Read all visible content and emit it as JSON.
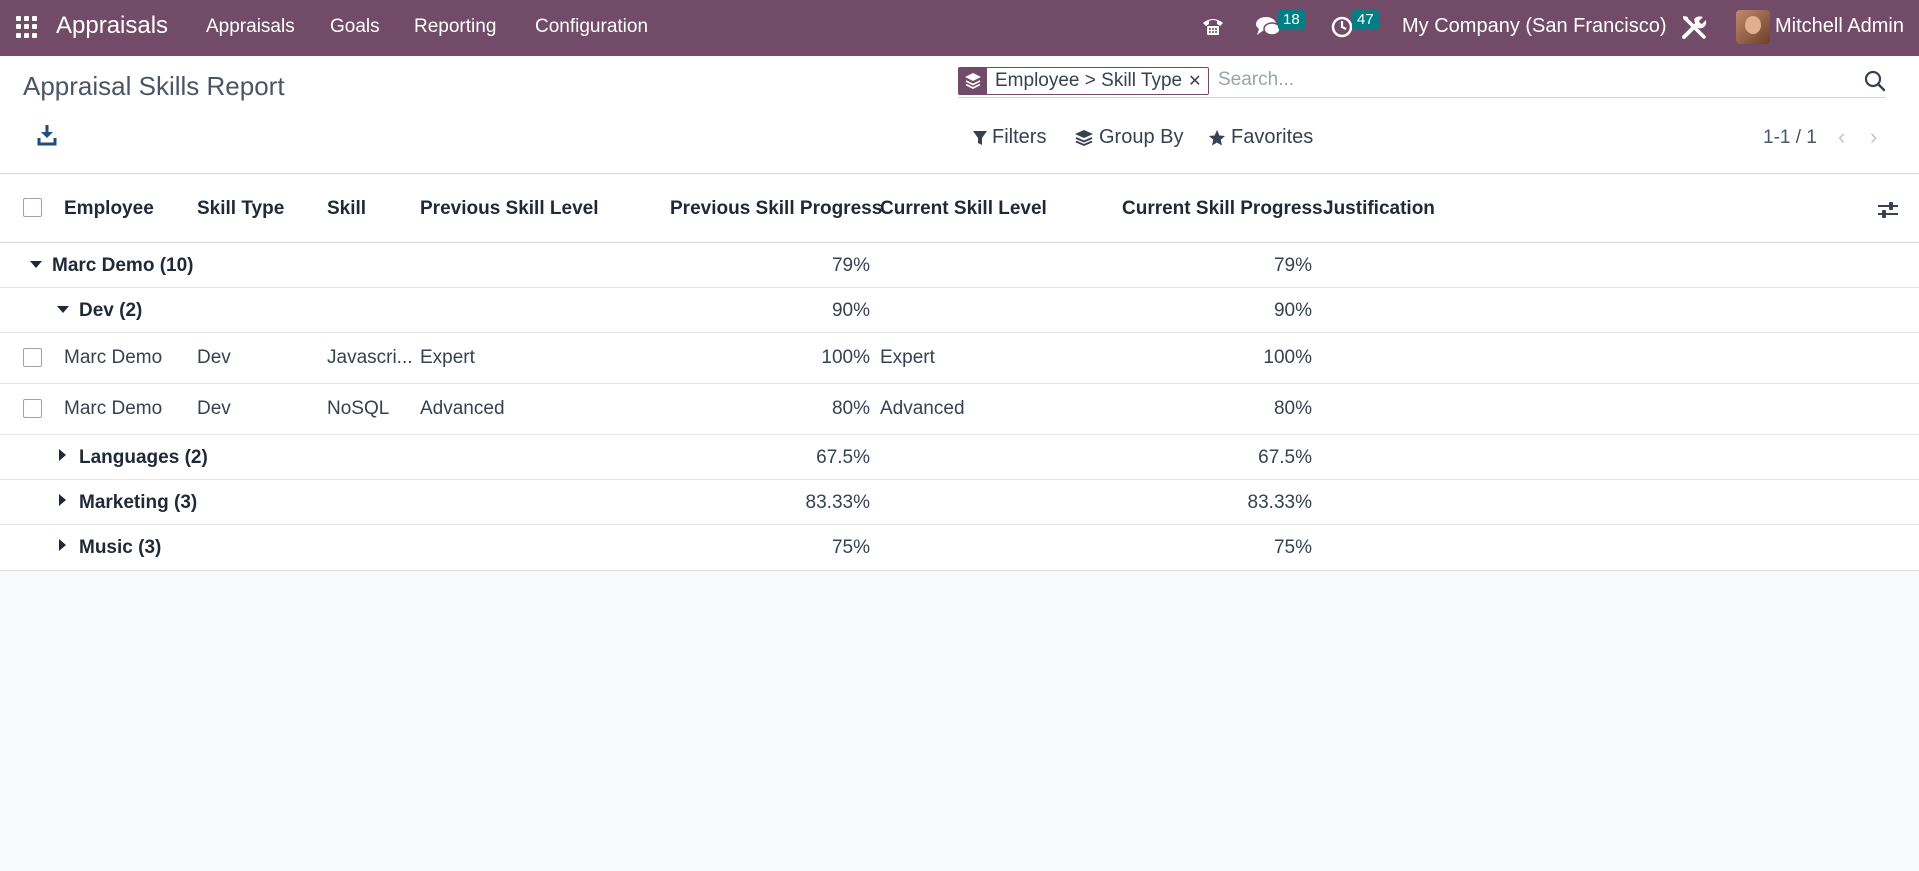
{
  "navbar": {
    "brand": "Appraisals",
    "menu": [
      "Appraisals",
      "Goals",
      "Reporting",
      "Configuration"
    ],
    "messages_count": "18",
    "activities_count": "47",
    "company": "My Company (San Francisco)",
    "user": "Mitchell Admin"
  },
  "control_panel": {
    "title": "Appraisal Skills Report",
    "facet": "Employee > Skill Type",
    "search_placeholder": "Search...",
    "filters": "Filters",
    "group_by": "Group By",
    "favorites": "Favorites",
    "pager": "1-1 / 1"
  },
  "table": {
    "columns": [
      "Employee",
      "Skill Type",
      "Skill",
      "Previous Skill Level",
      "Previous Skill Progress",
      "Current Skill Level",
      "Current Skill Progress",
      "Justification"
    ],
    "group": {
      "label": "Marc Demo (10)",
      "prev_progress": "79%",
      "curr_progress": "79%"
    },
    "subgroup": {
      "label": "Dev (2)",
      "prev_progress": "90%",
      "curr_progress": "90%"
    },
    "records": [
      {
        "employee": "Marc Demo",
        "skill_type": "Dev",
        "skill": "Javascri...",
        "prev_level": "Expert",
        "prev_progress": "100%",
        "curr_level": "Expert",
        "curr_progress": "100%"
      },
      {
        "employee": "Marc Demo",
        "skill_type": "Dev",
        "skill": "NoSQL",
        "prev_level": "Advanced",
        "prev_progress": "80%",
        "curr_level": "Advanced",
        "curr_progress": "80%"
      }
    ],
    "collapsed_groups": [
      {
        "label": "Languages (2)",
        "prev_progress": "67.5%",
        "curr_progress": "67.5%"
      },
      {
        "label": "Marketing (3)",
        "prev_progress": "83.33%",
        "curr_progress": "83.33%"
      },
      {
        "label": "Music (3)",
        "prev_progress": "75%",
        "curr_progress": "75%"
      }
    ]
  }
}
